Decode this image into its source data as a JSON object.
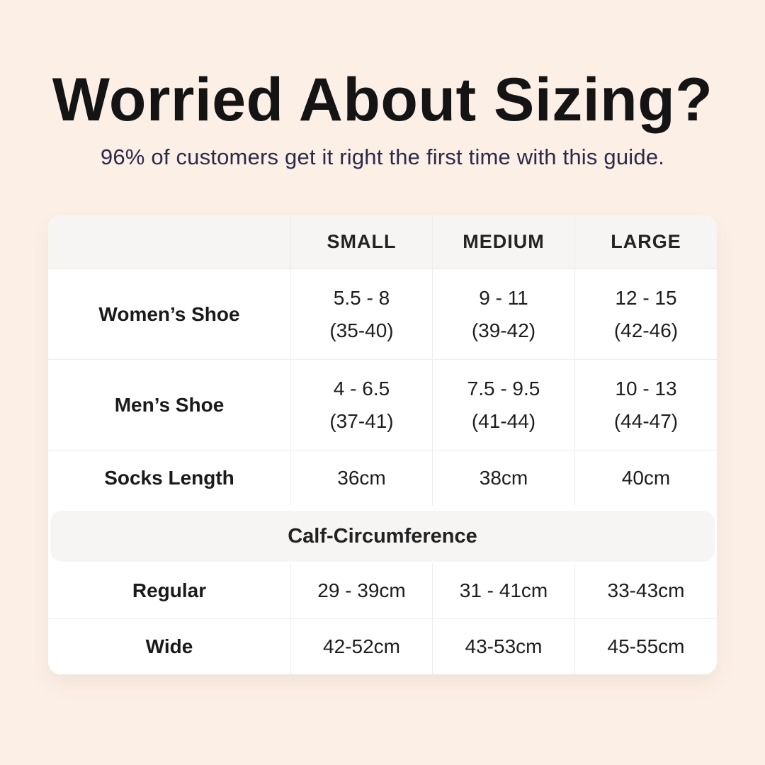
{
  "header": {
    "title": "Worried About Sizing?",
    "subtitle": "96% of customers get it right the first time with this guide."
  },
  "size_table": {
    "column_headers": [
      "SMALL",
      "MEDIUM",
      "LARGE"
    ],
    "rows": [
      {
        "label": "Women’s Shoe",
        "cells": [
          {
            "line1": "5.5 - 8",
            "line2": "(35-40)"
          },
          {
            "line1": "9 - 11",
            "line2": "(39-42)"
          },
          {
            "line1": "12 - 15",
            "line2": "(42-46)"
          }
        ]
      },
      {
        "label": "Men’s Shoe",
        "cells": [
          {
            "line1": "4 - 6.5",
            "line2": "(37-41)"
          },
          {
            "line1": "7.5 - 9.5",
            "line2": "(41-44)"
          },
          {
            "line1": "10 - 13",
            "line2": "(44-47)"
          }
        ]
      },
      {
        "label": "Socks Length",
        "cells": [
          {
            "line1": "36cm"
          },
          {
            "line1": "38cm"
          },
          {
            "line1": "40cm"
          }
        ]
      }
    ],
    "section": {
      "header": "Calf-Circumference",
      "rows": [
        {
          "label": "Regular",
          "cells": [
            {
              "line1": "29 - 39cm"
            },
            {
              "line1": "31 - 41cm"
            },
            {
              "line1": "33-43cm"
            }
          ]
        },
        {
          "label": "Wide",
          "cells": [
            {
              "line1": "42-52cm"
            },
            {
              "line1": "43-53cm"
            },
            {
              "line1": "45-55cm"
            }
          ]
        }
      ]
    }
  },
  "colors": {
    "page_background": "#fcefe6",
    "card_background": "#ffffff",
    "band_background": "#f6f5f3",
    "title_text": "#141414",
    "subtitle_text": "#2b2b49",
    "table_text": "#1d1d1d",
    "divider": "#eeedec"
  },
  "chart_data": {
    "type": "table",
    "title": "Worried About Sizing?",
    "subtitle": "96% of customers get it right the first time with this guide.",
    "columns": [
      "",
      "SMALL",
      "MEDIUM",
      "LARGE"
    ],
    "rows": [
      [
        "Women’s Shoe",
        "5.5 - 8 (35-40)",
        "9 - 11 (39-42)",
        "12 - 15 (42-46)"
      ],
      [
        "Men’s Shoe",
        "4 - 6.5 (37-41)",
        "7.5 - 9.5 (41-44)",
        "10 - 13 (44-47)"
      ],
      [
        "Socks Length",
        "36cm",
        "38cm",
        "40cm"
      ],
      [
        "Calf-Circumference",
        "",
        "",
        ""
      ],
      [
        "Regular",
        "29 - 39cm",
        "31 - 41cm",
        "33-43cm"
      ],
      [
        "Wide",
        "42-52cm",
        "43-53cm",
        "45-55cm"
      ]
    ],
    "layout_hints": {
      "section_span_row": "Calf-Circumference",
      "header_style": "light-gray band",
      "grid": "light vertical and horizontal dividers"
    }
  }
}
